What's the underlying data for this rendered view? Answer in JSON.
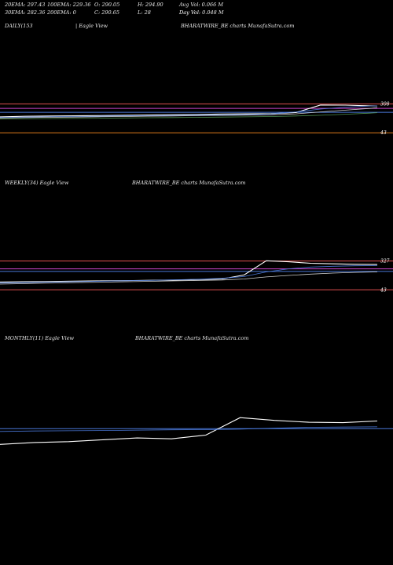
{
  "header": {
    "row1": {
      "ema20": "20EMA: 297.43",
      "ema100": "100EMA: 229.36",
      "open": "O: 290.05",
      "high": "H: 294.90",
      "avg_vol": "Avg Vol: 0.066  M"
    },
    "row2": {
      "ema30": "30EMA: 282.36",
      "ema200": "200EMA: 0",
      "close": "C: 290.65",
      "low": "L: 28",
      "day_vol_a": "Day Vol: 0.048  M",
      "day_vol_b": "Day Vol"
    }
  },
  "panels": {
    "daily": {
      "label": "DAILY(153",
      "view": "| Eagle  View",
      "watermark": "BHARATWIRE_BE charts MunafaSutra.com",
      "y_labels": [
        "308",
        "43"
      ]
    },
    "weekly": {
      "label": "WEEKLY(34) Eagle  View",
      "watermark": "BHARATWIRE_BE charts MunafaSutra.com",
      "y_labels": [
        "327",
        "43"
      ]
    },
    "monthly": {
      "label": "MONTHLY(11) Eagle  View",
      "watermark": "BHARATWIRE_BE charts MunafaSutra.com",
      "y_labels": []
    }
  },
  "chart_data": [
    {
      "type": "line",
      "title": "DAILY(153",
      "ylim": [
        30,
        320
      ],
      "x": [
        0,
        10,
        20,
        30,
        40,
        50,
        60,
        70,
        80,
        90,
        100,
        110,
        120,
        130,
        140,
        150,
        153
      ],
      "series": [
        {
          "values": [
            190,
            195,
            198,
            200,
            202,
            205,
            207,
            210,
            212,
            216,
            218,
            220,
            230,
            300,
            298,
            292,
            291
          ]
        },
        {
          "values": [
            185,
            188,
            190,
            193,
            196,
            199,
            201,
            204,
            206,
            209,
            212,
            218,
            236,
            262,
            280,
            290,
            292
          ]
        },
        {
          "values": [
            180,
            183,
            186,
            188,
            191,
            193,
            196,
            198,
            201,
            203,
            206,
            210,
            218,
            236,
            252,
            268,
            276
          ]
        },
        {
          "values": [
            170,
            172,
            174,
            176,
            178,
            180,
            182,
            184,
            186,
            188,
            190,
            193,
            198,
            205,
            214,
            224,
            229
          ]
        }
      ],
      "hlines": [
        {
          "value": 310,
          "color": "#e05050"
        },
        {
          "value": 268,
          "color": "#cc44cc"
        },
        {
          "value": 232,
          "color": "#4a78d8"
        },
        {
          "value": 43,
          "color": "#e07a1a"
        }
      ]
    },
    {
      "type": "line",
      "title": "WEEKLY(34) Eagle  View",
      "ylim": [
        30,
        340
      ],
      "x": [
        0,
        2,
        4,
        6,
        8,
        10,
        12,
        14,
        16,
        18,
        20,
        22,
        24,
        26,
        28,
        30,
        32,
        34
      ],
      "series": [
        {
          "values": [
            120,
            122,
            124,
            128,
            130,
            132,
            135,
            138,
            140,
            145,
            150,
            190,
            330,
            320,
            305,
            300,
            295,
            293
          ]
        },
        {
          "values": [
            110,
            114,
            118,
            122,
            126,
            130,
            134,
            138,
            142,
            148,
            156,
            174,
            220,
            250,
            268,
            276,
            280,
            282
          ]
        },
        {
          "values": [
            100,
            104,
            108,
            112,
            116,
            120,
            124,
            128,
            132,
            136,
            140,
            150,
            170,
            185,
            198,
            208,
            215,
            220
          ]
        }
      ],
      "hlines": [
        {
          "value": 327,
          "color": "#e05050"
        },
        {
          "value": 250,
          "color": "#cc44cc"
        },
        {
          "value": 225,
          "color": "#4a78d8"
        },
        {
          "value": 43,
          "color": "#e05050"
        }
      ]
    },
    {
      "type": "line",
      "title": "MONTHLY(11) Eagle  View",
      "ylim": [
        0,
        340
      ],
      "x": [
        0,
        1,
        2,
        3,
        4,
        5,
        6,
        7,
        8,
        9,
        10,
        11
      ],
      "series": [
        {
          "values": [
            40,
            60,
            70,
            90,
            110,
            100,
            140,
            330,
            300,
            280,
            275,
            293
          ]
        },
        {
          "values": [
            180,
            185,
            188,
            190,
            195,
            198,
            200,
            205,
            215,
            225,
            228,
            230
          ]
        }
      ],
      "hlines": [
        {
          "value": 210,
          "color": "#4a78d8"
        }
      ]
    }
  ]
}
